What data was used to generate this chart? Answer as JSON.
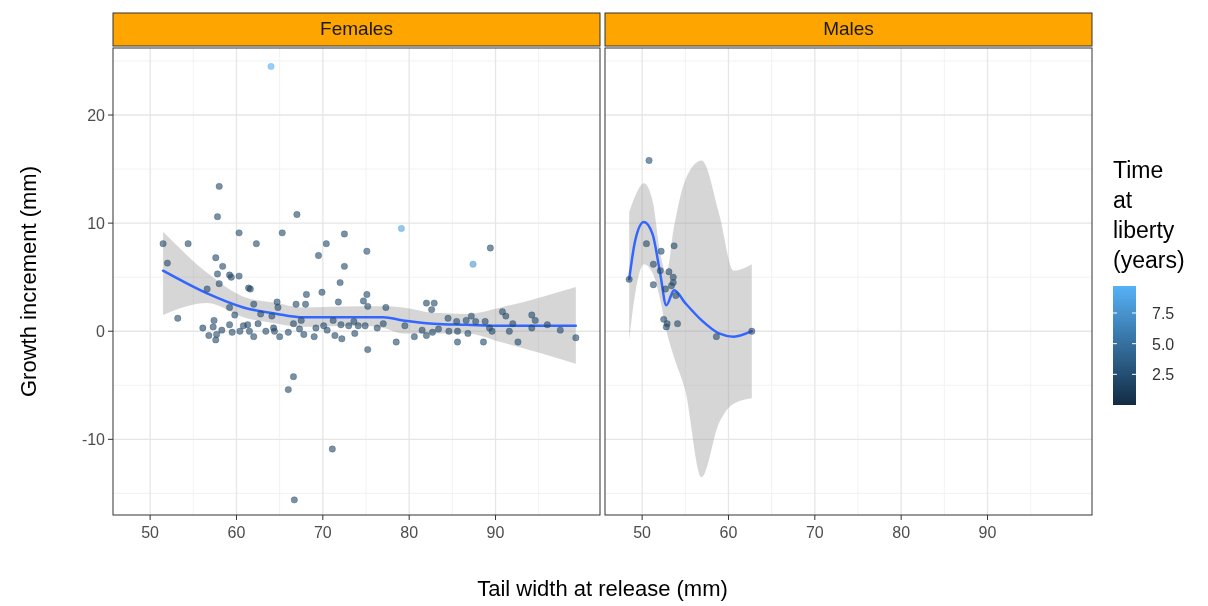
{
  "chart_data": [
    {
      "type": "scatter",
      "title": "Females",
      "xlabel": "Tail width at release (mm)",
      "ylabel": "Growth increment (mm)",
      "xlim": [
        45.7,
        102.1
      ],
      "xticks": [
        50,
        60,
        70,
        80,
        90
      ],
      "ylim": [
        -17,
        26.2
      ],
      "yticks": [
        -10,
        0,
        10,
        20
      ],
      "grid": true,
      "series": [
        {
          "marker": "circle",
          "colors": [
            "#55aef3",
            "#214768",
            "#214768",
            "#214768",
            "#214768",
            "#214768",
            "#214768",
            "#214768",
            "#214768",
            "#214768",
            "#214768",
            "#214768",
            "#214768",
            "#214768",
            "#214768",
            "#214768",
            "#214768",
            "#1d405f",
            "#214768",
            "#214768",
            "#214768",
            "#214768",
            "#214768",
            "#1d405f",
            "#214768",
            "#214768",
            "#214768",
            "#214768",
            "#214768",
            "#214768",
            "#214768",
            "#214768",
            "#214768",
            "#214768",
            "#214768",
            "#214768",
            "#214768",
            "#214768",
            "#214768",
            "#214768",
            "#214768",
            "#1d405f",
            "#214768",
            "#214768",
            "#214768",
            "#214768",
            "#1d405f",
            "#214768",
            "#214768",
            "#214768",
            "#214768",
            "#214768",
            "#214768",
            "#214768",
            "#1d405f",
            "#214768",
            "#1a3956",
            "#214768",
            "#214768",
            "#214768",
            "#214768",
            "#214768",
            "#214768",
            "#214768",
            "#214768",
            "#214768",
            "#214768",
            "#214768",
            "#214768",
            "#214768",
            "#214768",
            "#214768",
            "#214768",
            "#214768",
            "#214768",
            "#214768",
            "#214768",
            "#4ea0e1",
            "#244e71",
            "#214768",
            "#4793ce",
            "#214768",
            "#214768",
            "#214768",
            "#214768",
            "#1d405f",
            "#214768",
            "#214768",
            "#214768",
            "#214768",
            "#214768",
            "#214768",
            "#214768",
            "#214768",
            "#214768",
            "#214768",
            "#214768",
            "#214768",
            "#214768",
            "#214768",
            "#214768",
            "#214768",
            "#214768",
            "#214768",
            "#214768",
            "#214768",
            "#214768",
            "#1d405f",
            "#214768",
            "#214768",
            "#214768",
            "#214768",
            "#214768",
            "#214768",
            "#214768",
            "#214768",
            "#214768",
            "#214768",
            "#214768",
            "#214768",
            "#214768",
            "#214768",
            "#214768",
            "#214768"
          ],
          "x": [
            64.0,
            58.0,
            57.8,
            67.0,
            60.3,
            65.3,
            72.5,
            51.5,
            54.4,
            62.3,
            70.4,
            69.5,
            52.0,
            57.6,
            58.4,
            72.5,
            57.8,
            59.2,
            59.4,
            60.3,
            58.0,
            72.0,
            61.4,
            61.6,
            56.6,
            69.9,
            68.1,
            71.8,
            64.7,
            64.8,
            66.9,
            68.0,
            62.0,
            59.2,
            59.8,
            53.2,
            62.8,
            64.1,
            67.5,
            71.2,
            57.4,
            56.1,
            56.8,
            57.3,
            57.7,
            57.6,
            58.3,
            59.2,
            59.5,
            60.4,
            60.8,
            61.3,
            61.5,
            62.0,
            62.5,
            63.4,
            64.3,
            64.4,
            65.0,
            66.0,
            66.6,
            67.3,
            67.8,
            69.0,
            69.2,
            70.1,
            70.5,
            71.4,
            72.1,
            72.2,
            73.0,
            73.7,
            74.1,
            66.6,
            66.0,
            71.1,
            66.7,
            79.1,
            75.1,
            89.4,
            87.4,
            75.1,
            74.7,
            75.2,
            77.3,
            82.0,
            82.9,
            82.6,
            90.8,
            91.2,
            94.2,
            94.6,
            73.6,
            74.9,
            75.2,
            76.3,
            77.0,
            78.5,
            79.5,
            80.6,
            81.5,
            82.0,
            82.7,
            83.4,
            84.5,
            84.6,
            85.5,
            85.6,
            85.6,
            86.6,
            86.8,
            87.2,
            87.7,
            88.6,
            88.8,
            89.3,
            89.6,
            91.6,
            92.0,
            92.6,
            94.2,
            96.0,
            97.5,
            99.3
          ],
          "values": [
            24.5,
            13.4,
            10.6,
            10.8,
            9.1,
            9.1,
            9.0,
            8.1,
            8.1,
            8.1,
            8.1,
            7.0,
            6.3,
            6.8,
            6.0,
            6.0,
            5.3,
            5.2,
            5.0,
            5.1,
            4.4,
            4.5,
            4.0,
            3.9,
            3.9,
            3.6,
            3.4,
            2.7,
            2.7,
            2.2,
            2.5,
            2.5,
            2.5,
            2.2,
            1.5,
            1.2,
            1.6,
            1.4,
            1.0,
            1.0,
            1.0,
            0.3,
            -0.4,
            0.4,
            -0.3,
            -0.8,
            0.1,
            0.6,
            -0.1,
            0.0,
            0.5,
            0.6,
            0.0,
            -0.5,
            0.7,
            0.0,
            0.3,
            0.0,
            -0.5,
            -0.1,
            0.7,
            0.2,
            -0.3,
            -0.5,
            0.3,
            0.5,
            0.1,
            -0.4,
            0.6,
            -0.7,
            0.5,
            -0.2,
            0.5,
            -4.2,
            -5.4,
            -10.9,
            -15.6,
            9.5,
            7.4,
            7.7,
            6.2,
            3.4,
            2.8,
            2.3,
            2.2,
            2.6,
            2.6,
            2.0,
            1.8,
            1.4,
            1.5,
            1.0,
            0.9,
            0.5,
            -1.7,
            0.3,
            0.7,
            -1.0,
            0.5,
            -0.5,
            0.1,
            -0.4,
            -0.1,
            0.2,
            1.2,
            0.0,
            0.9,
            0.0,
            -1.0,
            1.0,
            -0.2,
            1.4,
            0.9,
            -1.0,
            0.9,
            0.3,
            0.0,
            0.0,
            0.7,
            -1.0,
            0.3,
            0.6,
            0.1,
            -0.6
          ],
          "name": null
        },
        {
          "type": "line",
          "color": "#3366ff",
          "x": [
            51.5,
            56.6,
            60.8,
            64.7,
            67.4,
            74.3,
            77.0,
            79.3,
            82.8,
            86.7,
            90.6,
            99.3
          ],
          "values": [
            5.6,
            3.5,
            2.2,
            1.6,
            1.3,
            1.3,
            1.3,
            1.0,
            0.7,
            0.6,
            0.5,
            0.5
          ],
          "lower": [
            1.5,
            2.6,
            1.3,
            0.7,
            0.4,
            0.5,
            0.3,
            -0.2,
            -0.2,
            -0.2,
            -1.0,
            -3.0
          ],
          "upper": [
            9.2,
            5.4,
            3.2,
            2.6,
            2.2,
            2.3,
            2.3,
            2.2,
            1.7,
            1.6,
            2.2,
            4.1
          ]
        }
      ]
    },
    {
      "type": "scatter",
      "title": "Males",
      "xlim": [
        45.7,
        102.1
      ],
      "xticks": [
        50,
        60,
        70,
        80,
        90
      ],
      "ylim": [
        -17,
        26.2
      ],
      "yticks": [
        -10,
        0,
        10,
        20
      ],
      "grid": true,
      "tick_labels": "x",
      "clabel": "Time at liberty (years)",
      "clim": [
        0,
        9.7
      ],
      "cticks": [
        2.5,
        {
          "value": 5,
          "label": "5.0"
        },
        7.5
      ],
      "series": [
        {
          "marker": "circle",
          "colors": [
            "#214768",
            "#244e71",
            "#214768",
            "#214768",
            "#214768",
            "#214768",
            "#214768",
            "#214768",
            "#214768",
            "#214768",
            "#214768",
            "#214768",
            "#214768",
            "#214768",
            "#214768",
            "#214768",
            "#214768",
            "#214768",
            "#214768",
            "#214768"
          ],
          "x": [
            48.5,
            50.8,
            50.5,
            52.2,
            53.7,
            51.3,
            52.1,
            53.1,
            53.6,
            53.6,
            53.4,
            51.3,
            52.7,
            53.9,
            52.5,
            52.9,
            52.8,
            54.1,
            58.6,
            62.7
          ],
          "values": [
            4.8,
            15.8,
            8.1,
            7.4,
            7.9,
            6.2,
            5.6,
            5.5,
            5.0,
            4.5,
            4.2,
            4.3,
            3.9,
            3.3,
            1.1,
            0.7,
            0.4,
            0.7,
            -0.5,
            0.0
          ]
        },
        {
          "type": "line",
          "color": "#3366ff",
          "x": [
            48.5,
            49.2,
            50.2,
            51.2,
            52.1,
            52.8,
            53.7,
            55.0,
            56.9,
            58.9,
            60.6,
            62.7
          ],
          "values": [
            4.8,
            8.4,
            10.1,
            9.0,
            5.3,
            2.4,
            3.8,
            2.6,
            1.0,
            -0.2,
            -0.5,
            0.0
          ],
          "lower": [
            -0.8,
            3.5,
            6.2,
            5.4,
            2.9,
            0.1,
            -2.4,
            -5.5,
            -13.5,
            -8.5,
            -6.7,
            -6.2
          ],
          "upper": [
            11.0,
            12.5,
            13.7,
            12.1,
            7.2,
            5.4,
            9.7,
            14.0,
            15.8,
            10.9,
            5.6,
            6.2
          ]
        }
      ]
    }
  ]
}
